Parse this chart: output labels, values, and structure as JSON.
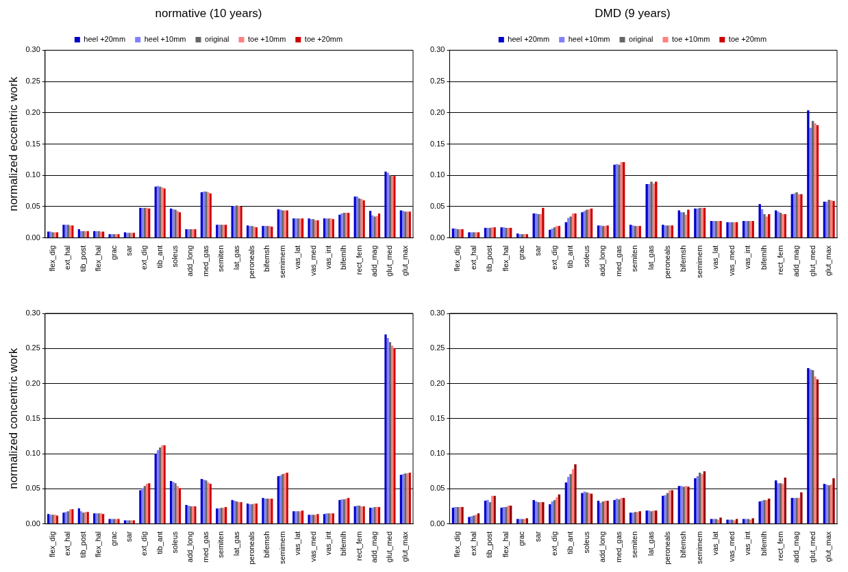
{
  "chart_data": [
    {
      "type": "bar",
      "title": "normative (10 years)",
      "ylabel": "normalized eccentric work",
      "legend": "top",
      "grid": "y",
      "categories": [
        "flex_dig",
        "ext_hal",
        "tib_post",
        "flex_hal",
        "grac",
        "sar",
        "ext_dig",
        "tib_ant",
        "soleus",
        "add_long",
        "med_gas",
        "semiten",
        "lat_gas",
        "peroneals",
        "bifemsh",
        "semimem",
        "vas_lat",
        "vas_med",
        "vas_int",
        "bifemlh",
        "rect_fem",
        "add_mag",
        "glut_med",
        "glut_max"
      ],
      "ylim": [
        0,
        0.3
      ],
      "yticks": [
        {
          "value": 0,
          "label": "0.00"
        },
        {
          "value": 0.05,
          "label": "0.05"
        },
        {
          "value": 0.1,
          "label": "0.10"
        },
        {
          "value": 0.15,
          "label": "0.15"
        },
        {
          "value": 0.2,
          "label": "0.20"
        },
        {
          "value": 0.25,
          "label": "0.25"
        },
        {
          "value": 0.3,
          "label": "0.30"
        }
      ],
      "series": [
        {
          "name": "heel +20mm",
          "color": "#0000cc",
          "values": [
            0.01,
            0.021,
            0.014,
            0.011,
            0.006,
            0.009,
            0.048,
            0.082,
            0.047,
            0.014,
            0.073,
            0.021,
            0.051,
            0.02,
            0.019,
            0.046,
            0.031,
            0.031,
            0.031,
            0.037,
            0.066,
            0.043,
            0.106,
            0.044
          ]
        },
        {
          "name": "heel +10mm",
          "color": "#8080ff",
          "values": [
            0.01,
            0.021,
            0.011,
            0.011,
            0.006,
            0.008,
            0.048,
            0.083,
            0.046,
            0.014,
            0.074,
            0.021,
            0.051,
            0.019,
            0.019,
            0.045,
            0.031,
            0.03,
            0.031,
            0.039,
            0.066,
            0.036,
            0.104,
            0.043
          ]
        },
        {
          "name": "original",
          "color": "#666666",
          "values": [
            0.009,
            0.021,
            0.011,
            0.011,
            0.006,
            0.008,
            0.048,
            0.082,
            0.045,
            0.014,
            0.074,
            0.021,
            0.052,
            0.019,
            0.019,
            0.044,
            0.031,
            0.03,
            0.031,
            0.04,
            0.063,
            0.034,
            0.1,
            0.042
          ]
        },
        {
          "name": "toe +10mm",
          "color": "#ff8080",
          "values": [
            0.009,
            0.02,
            0.011,
            0.01,
            0.006,
            0.008,
            0.048,
            0.081,
            0.043,
            0.014,
            0.073,
            0.021,
            0.051,
            0.018,
            0.019,
            0.044,
            0.031,
            0.028,
            0.031,
            0.04,
            0.062,
            0.035,
            0.099,
            0.042
          ]
        },
        {
          "name": "toe +20mm",
          "color": "#cc0000",
          "values": [
            0.009,
            0.02,
            0.011,
            0.01,
            0.006,
            0.008,
            0.047,
            0.079,
            0.041,
            0.014,
            0.071,
            0.021,
            0.05,
            0.017,
            0.018,
            0.044,
            0.031,
            0.028,
            0.03,
            0.04,
            0.06,
            0.039,
            0.099,
            0.042
          ]
        }
      ]
    },
    {
      "type": "bar",
      "title": "DMD (9 years)",
      "legend": "top",
      "grid": "y",
      "categories": [
        "flex_dig",
        "ext_hal",
        "tib_post",
        "flex_hal",
        "grac",
        "sar",
        "ext_dig",
        "tib_ant",
        "soleus",
        "add_long",
        "med_gas",
        "semiten",
        "lat_gas",
        "peroneals",
        "bifemsh",
        "semimem",
        "vas_lat",
        "vas_med",
        "vas_int",
        "bifemlh",
        "rect_fem",
        "add_mag",
        "glut_med",
        "glut_max"
      ],
      "ylim": [
        0,
        0.3
      ],
      "yticks": [
        {
          "value": 0,
          "label": "0.00"
        },
        {
          "value": 0.05,
          "label": "0.05"
        },
        {
          "value": 0.1,
          "label": "0.10"
        },
        {
          "value": 0.15,
          "label": "0.15"
        },
        {
          "value": 0.2,
          "label": "0.20"
        },
        {
          "value": 0.25,
          "label": "0.25"
        },
        {
          "value": 0.3,
          "label": "0.30"
        }
      ],
      "series": [
        {
          "name": "heel +20mm",
          "color": "#0000cc",
          "values": [
            0.015,
            0.009,
            0.016,
            0.017,
            0.007,
            0.039,
            0.013,
            0.025,
            0.041,
            0.02,
            0.117,
            0.021,
            0.086,
            0.021,
            0.044,
            0.047,
            0.027,
            0.025,
            0.027,
            0.054,
            0.044,
            0.07,
            0.204,
            0.058
          ]
        },
        {
          "name": "heel +10mm",
          "color": "#8080ff",
          "values": [
            0.015,
            0.009,
            0.016,
            0.017,
            0.006,
            0.039,
            0.015,
            0.032,
            0.043,
            0.02,
            0.118,
            0.02,
            0.086,
            0.02,
            0.041,
            0.047,
            0.027,
            0.025,
            0.027,
            0.046,
            0.042,
            0.071,
            0.176,
            0.058
          ]
        },
        {
          "name": "original",
          "color": "#666666",
          "values": [
            0.014,
            0.009,
            0.016,
            0.016,
            0.006,
            0.038,
            0.017,
            0.034,
            0.045,
            0.019,
            0.117,
            0.019,
            0.09,
            0.02,
            0.041,
            0.048,
            0.027,
            0.025,
            0.027,
            0.038,
            0.04,
            0.073,
            0.187,
            0.061
          ]
        },
        {
          "name": "toe +10mm",
          "color": "#ff8080",
          "values": [
            0.014,
            0.009,
            0.017,
            0.016,
            0.006,
            0.038,
            0.019,
            0.039,
            0.046,
            0.019,
            0.121,
            0.019,
            0.087,
            0.02,
            0.037,
            0.048,
            0.027,
            0.025,
            0.027,
            0.034,
            0.038,
            0.07,
            0.183,
            0.06
          ]
        },
        {
          "name": "toe +20mm",
          "color": "#cc0000",
          "values": [
            0.014,
            0.009,
            0.017,
            0.016,
            0.006,
            0.048,
            0.019,
            0.039,
            0.047,
            0.02,
            0.121,
            0.019,
            0.09,
            0.02,
            0.045,
            0.048,
            0.027,
            0.025,
            0.027,
            0.038,
            0.038,
            0.07,
            0.18,
            0.059
          ]
        }
      ]
    },
    {
      "type": "bar",
      "ylabel": "normalized concentric work",
      "grid": "y",
      "categories": [
        "flex_dig",
        "ext_hal",
        "tib_post",
        "flex_hal",
        "grac",
        "sar",
        "ext_dig",
        "tib_ant",
        "soleus",
        "add_long",
        "med_gas",
        "semiten",
        "lat_gas",
        "peroneals",
        "bifemsh",
        "semimem",
        "vas_lat",
        "vas_med",
        "vas_int",
        "bifemlh",
        "rect_fem",
        "add_mag",
        "glut_med",
        "glut_max"
      ],
      "ylim": [
        0,
        0.3
      ],
      "yticks": [
        {
          "value": 0,
          "label": "0.00"
        },
        {
          "value": 0.05,
          "label": "0.05"
        },
        {
          "value": 0.1,
          "label": "0.10"
        },
        {
          "value": 0.15,
          "label": "0.15"
        },
        {
          "value": 0.2,
          "label": "0.20"
        },
        {
          "value": 0.25,
          "label": "0.25"
        },
        {
          "value": 0.3,
          "label": "0.30"
        }
      ],
      "series": [
        {
          "color": "#0000cc",
          "values": [
            0.014,
            0.016,
            0.022,
            0.015,
            0.007,
            0.005,
            0.048,
            0.1,
            0.061,
            0.027,
            0.064,
            0.022,
            0.034,
            0.029,
            0.037,
            0.068,
            0.018,
            0.013,
            0.014,
            0.034,
            0.025,
            0.023,
            0.27,
            0.07
          ]
        },
        {
          "color": "#8080ff",
          "values": [
            0.013,
            0.017,
            0.018,
            0.015,
            0.007,
            0.005,
            0.051,
            0.105,
            0.06,
            0.026,
            0.063,
            0.022,
            0.033,
            0.028,
            0.036,
            0.069,
            0.018,
            0.013,
            0.015,
            0.035,
            0.026,
            0.023,
            0.265,
            0.071
          ]
        },
        {
          "color": "#666666",
          "values": [
            0.013,
            0.018,
            0.016,
            0.015,
            0.007,
            0.005,
            0.054,
            0.109,
            0.058,
            0.025,
            0.062,
            0.023,
            0.032,
            0.028,
            0.036,
            0.071,
            0.018,
            0.013,
            0.015,
            0.035,
            0.026,
            0.024,
            0.259,
            0.072
          ]
        },
        {
          "color": "#ff8080",
          "values": [
            0.013,
            0.021,
            0.017,
            0.015,
            0.007,
            0.005,
            0.057,
            0.112,
            0.054,
            0.025,
            0.059,
            0.023,
            0.031,
            0.029,
            0.036,
            0.072,
            0.018,
            0.013,
            0.015,
            0.036,
            0.025,
            0.024,
            0.254,
            0.072
          ]
        },
        {
          "color": "#cc0000",
          "values": [
            0.012,
            0.021,
            0.017,
            0.014,
            0.007,
            0.005,
            0.058,
            0.112,
            0.051,
            0.025,
            0.057,
            0.024,
            0.031,
            0.029,
            0.036,
            0.073,
            0.019,
            0.014,
            0.015,
            0.037,
            0.025,
            0.024,
            0.25,
            0.073
          ]
        }
      ]
    },
    {
      "type": "bar",
      "grid": "y",
      "categories": [
        "flex_dig",
        "ext_hal",
        "tib_post",
        "flex_hal",
        "grac",
        "sar",
        "ext_dig",
        "tib_ant",
        "soleus",
        "add_long",
        "med_gas",
        "semiten",
        "lat_gas",
        "peroneals",
        "bifemsh",
        "semimem",
        "vas_lat",
        "vas_med",
        "vas_int",
        "bifemlh",
        "rect_fem",
        "add_mag",
        "glut_med",
        "glut_max"
      ],
      "ylim": [
        0,
        0.3
      ],
      "yticks": [
        {
          "value": 0,
          "label": "0.00"
        },
        {
          "value": 0.05,
          "label": "0.05"
        },
        {
          "value": 0.1,
          "label": "0.10"
        },
        {
          "value": 0.15,
          "label": "0.15"
        },
        {
          "value": 0.2,
          "label": "0.20"
        },
        {
          "value": 0.25,
          "label": "0.25"
        },
        {
          "value": 0.3,
          "label": "0.30"
        }
      ],
      "series": [
        {
          "color": "#0000cc",
          "values": [
            0.023,
            0.01,
            0.033,
            0.023,
            0.007,
            0.034,
            0.028,
            0.059,
            0.044,
            0.033,
            0.034,
            0.016,
            0.019,
            0.04,
            0.054,
            0.065,
            0.007,
            0.006,
            0.007,
            0.032,
            0.062,
            0.037,
            0.222,
            0.057
          ]
        },
        {
          "color": "#8080ff",
          "values": [
            0.024,
            0.011,
            0.034,
            0.024,
            0.007,
            0.032,
            0.032,
            0.067,
            0.046,
            0.03,
            0.036,
            0.016,
            0.019,
            0.041,
            0.054,
            0.068,
            0.007,
            0.006,
            0.007,
            0.033,
            0.058,
            0.037,
            0.22,
            0.056
          ]
        },
        {
          "color": "#666666",
          "values": [
            0.024,
            0.012,
            0.031,
            0.024,
            0.007,
            0.031,
            0.034,
            0.071,
            0.045,
            0.032,
            0.035,
            0.017,
            0.018,
            0.044,
            0.053,
            0.073,
            0.007,
            0.006,
            0.007,
            0.034,
            0.058,
            0.037,
            0.219,
            0.055
          ]
        },
        {
          "color": "#ff8080",
          "values": [
            0.024,
            0.013,
            0.04,
            0.026,
            0.007,
            0.031,
            0.038,
            0.078,
            0.044,
            0.033,
            0.037,
            0.017,
            0.019,
            0.048,
            0.054,
            0.071,
            0.006,
            0.005,
            0.006,
            0.034,
            0.057,
            0.037,
            0.21,
            0.056
          ]
        },
        {
          "color": "#990000",
          "values": [
            0.024,
            0.015,
            0.04,
            0.026,
            0.008,
            0.031,
            0.042,
            0.085,
            0.043,
            0.033,
            0.037,
            0.018,
            0.019,
            0.048,
            0.053,
            0.075,
            0.009,
            0.007,
            0.008,
            0.036,
            0.066,
            0.045,
            0.206,
            0.065
          ]
        }
      ]
    }
  ]
}
